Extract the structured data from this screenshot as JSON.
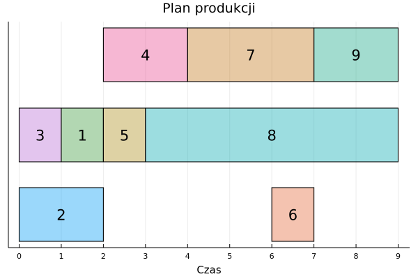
{
  "chart_data": {
    "type": "bar",
    "orientation": "horizontal-gantt",
    "title": "Plan produkcji",
    "xlabel": "Czas",
    "ylabel": "",
    "xlim": [
      0,
      9
    ],
    "x_ticks": [
      "0",
      "1",
      "2",
      "3",
      "4",
      "5",
      "6",
      "7",
      "8",
      "9"
    ],
    "grid": true,
    "rows": 3,
    "tasks": [
      {
        "label": "4",
        "row": 1,
        "start": 2,
        "end": 4,
        "color": "#e84c91"
      },
      {
        "label": "7",
        "row": 1,
        "start": 4,
        "end": 7,
        "color": "#c3771b"
      },
      {
        "label": "9",
        "row": 1,
        "start": 7,
        "end": 9,
        "color": "#17a886"
      },
      {
        "label": "3",
        "row": 2,
        "start": 0,
        "end": 1,
        "color": "#ba6fd4"
      },
      {
        "label": "1",
        "row": 2,
        "start": 1,
        "end": 2,
        "color": "#3f9a3f"
      },
      {
        "label": "5",
        "row": 2,
        "start": 2,
        "end": 3,
        "color": "#ad8e1c"
      },
      {
        "label": "8",
        "row": 2,
        "start": 3,
        "end": 9,
        "color": "#08aab2"
      },
      {
        "label": "2",
        "row": 3,
        "start": 0,
        "end": 2,
        "color": "#049ef6"
      },
      {
        "label": "6",
        "row": 3,
        "start": 6,
        "end": 7,
        "color": "#e3683a"
      }
    ]
  }
}
